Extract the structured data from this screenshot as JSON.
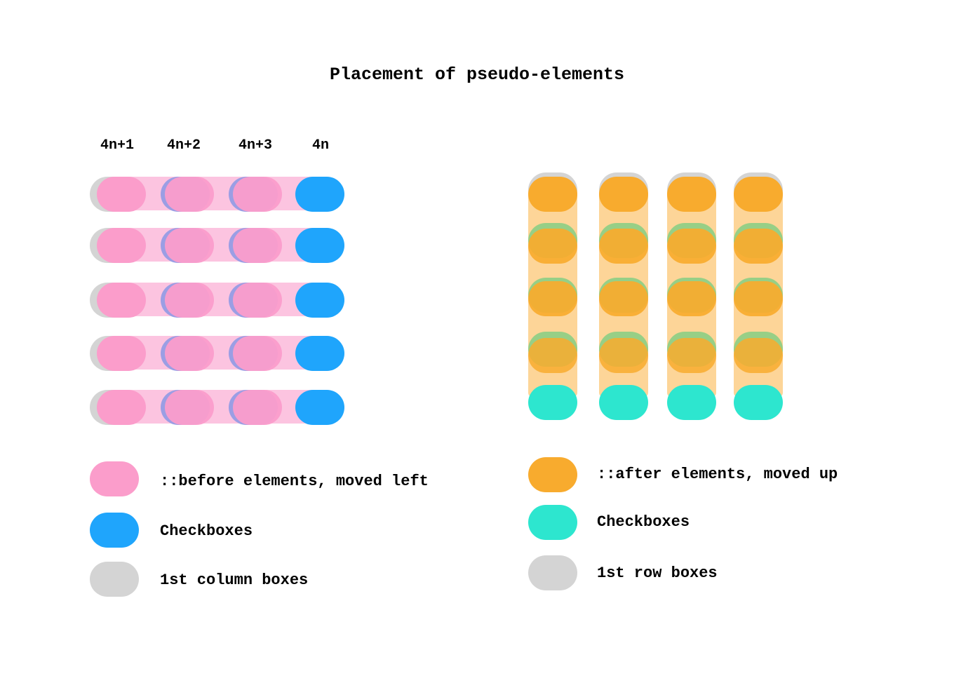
{
  "title": "Placement of pseudo-elements",
  "left_diagram": {
    "column_labels": [
      "4n+1",
      "4n+2",
      "4n+3",
      "4n"
    ],
    "rows": 5,
    "columns": 4
  },
  "right_diagram": {
    "rows": 5,
    "columns": 4
  },
  "left_legend": [
    {
      "label": "::before elements, moved left",
      "color": "#fb9dcb"
    },
    {
      "label": "Checkboxes",
      "color": "#1fa5fc"
    },
    {
      "label": "1st column boxes",
      "color": "#d4d4d4"
    }
  ],
  "right_legend": [
    {
      "label": "::after elements, moved up",
      "color": "#f8ab2e"
    },
    {
      "label": "Checkboxes",
      "color": "#2de6cf"
    },
    {
      "label": "1st row boxes",
      "color": "#d4d4d4"
    }
  ],
  "colors": {
    "pink": "#fb9dcb",
    "pink_band": "#fcc4e0",
    "blue": "#1fa5fc",
    "purple_edge": "#9b9ee4",
    "grey": "#d4d4d4",
    "orange": "#f8ab2e",
    "orange_band": "#fdd598",
    "teal": "#2de6cf",
    "green_edge": "#85ce82"
  }
}
